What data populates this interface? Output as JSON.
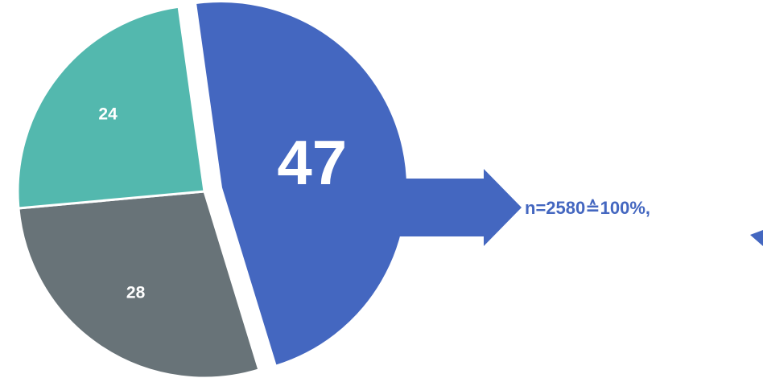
{
  "chart_data": {
    "type": "pie",
    "slices": [
      {
        "value": 47,
        "label": "47",
        "color": "#4467c0",
        "exploded": true
      },
      {
        "value": 28,
        "label": "28",
        "color": "#687378"
      },
      {
        "value": 24,
        "label": "24",
        "color": "#53b8ae"
      }
    ],
    "callout": {
      "text": "n=2580≙100%,",
      "color": "#4467c0"
    }
  }
}
